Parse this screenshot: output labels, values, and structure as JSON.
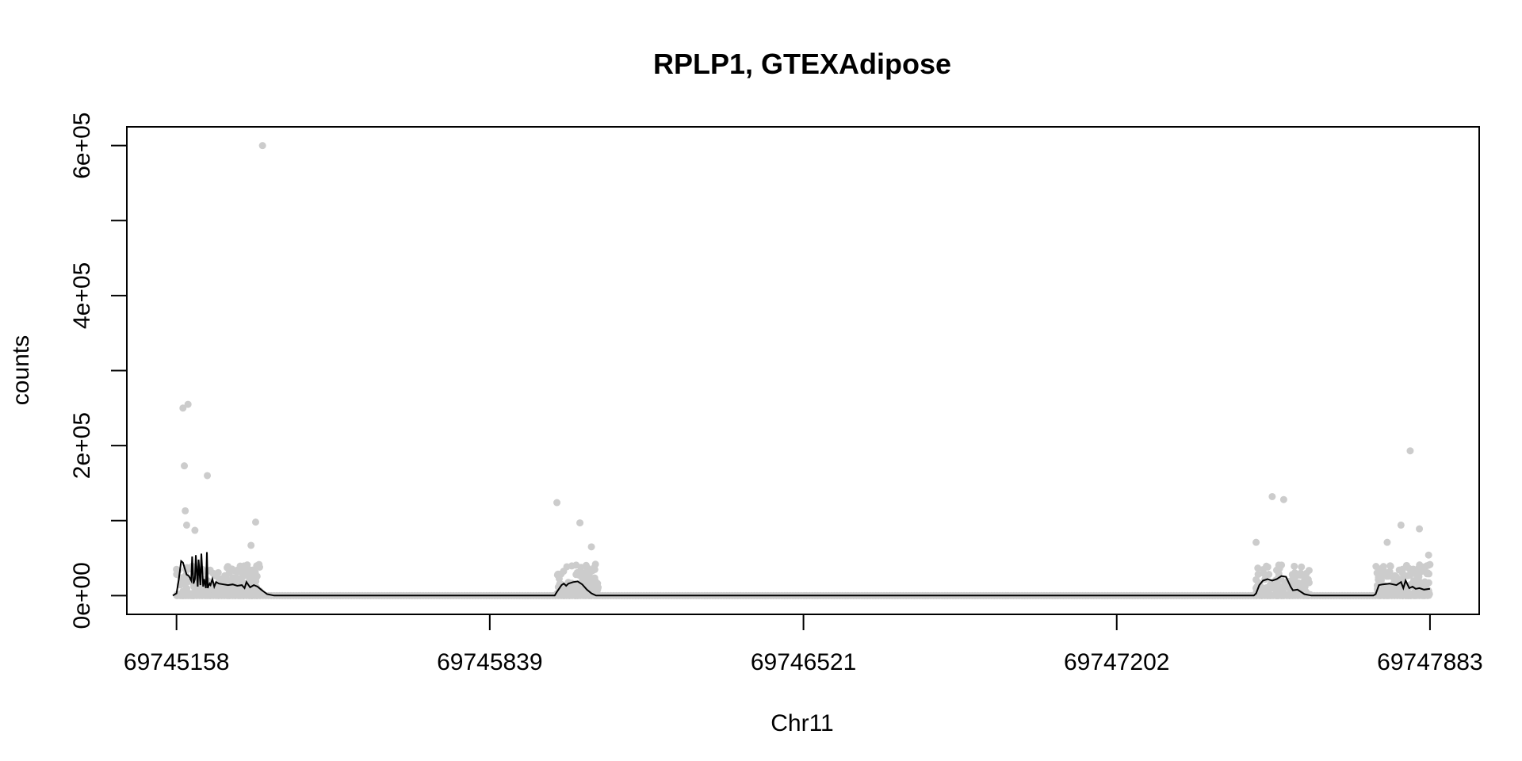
{
  "chart_data": {
    "type": "scatter",
    "title": "RPLP1, GTEXAdipose",
    "xlabel": "Chr11",
    "ylabel": "counts",
    "xlim": [
      69745050,
      69747990
    ],
    "ylim": [
      -25000,
      625000
    ],
    "x_ticks": [
      69745158,
      69745839,
      69746521,
      69747202,
      69747883
    ],
    "x_tick_labels": [
      "69745158",
      "69745839",
      "69746521",
      "69747202",
      "69747883"
    ],
    "y_ticks": [
      0,
      100000,
      200000,
      300000,
      400000,
      500000,
      600000
    ],
    "y_tick_labels": [
      "0e+00",
      "",
      "2e+05",
      "",
      "4e+05",
      "",
      "6e+05"
    ],
    "grid": false,
    "point_color": "#cccccc",
    "line_color": "#000000",
    "regions": [
      {
        "start": 69745158,
        "end": 69745340
      },
      {
        "start": 69745985,
        "end": 69746075
      },
      {
        "start": 69747505,
        "end": 69747625
      },
      {
        "start": 69747765,
        "end": 69747883
      }
    ],
    "outliers": [
      {
        "x": 69745345,
        "y": 600000
      },
      {
        "x": 69745172,
        "y": 250000
      },
      {
        "x": 69745183,
        "y": 255000
      },
      {
        "x": 69745175,
        "y": 173000
      },
      {
        "x": 69745225,
        "y": 160000
      },
      {
        "x": 69745177,
        "y": 113000
      },
      {
        "x": 69745180,
        "y": 94000
      },
      {
        "x": 69745330,
        "y": 98000
      },
      {
        "x": 69745198,
        "y": 87000
      },
      {
        "x": 69745320,
        "y": 67000
      },
      {
        "x": 69745985,
        "y": 124000
      },
      {
        "x": 69746035,
        "y": 97000
      },
      {
        "x": 69746060,
        "y": 65000
      },
      {
        "x": 69747540,
        "y": 132000
      },
      {
        "x": 69747565,
        "y": 128000
      },
      {
        "x": 69747505,
        "y": 71000
      },
      {
        "x": 69747840,
        "y": 193000
      },
      {
        "x": 69747820,
        "y": 94000
      },
      {
        "x": 69747860,
        "y": 89000
      },
      {
        "x": 69747790,
        "y": 71000
      },
      {
        "x": 69747880,
        "y": 54000
      }
    ],
    "series": [
      {
        "x": [
          69745150,
          69745158,
          69745163,
          69745168,
          69745172,
          69745176,
          69745180,
          69745185,
          69745190,
          69745192,
          69745195,
          69745198,
          69745200,
          69745204,
          69745206,
          69745210,
          69745212,
          69745216,
          69745218,
          69745222,
          69745224,
          69745226,
          69745230,
          69745232,
          69745236,
          69745240,
          69745244,
          69745250,
          69745260,
          69745270,
          69745280,
          69745290,
          69745300,
          69745306,
          69745310,
          69745318,
          69745326,
          69745334,
          69745342,
          69745355,
          69745370,
          69745400,
          69745980,
          69745985,
          69745995,
          69746000,
          69746005,
          69746010,
          69746020,
          69746030,
          69746040,
          69746050,
          69746060,
          69746070,
          69746075,
          69746090,
          69746100,
          69747500,
          69747505,
          69747512,
          69747520,
          69747530,
          69747540,
          69747550,
          69747555,
          69747560,
          69747570,
          69747580,
          69747585,
          69747595,
          69747610,
          69747625,
          69747640,
          69747760,
          69747765,
          69747772,
          69747780,
          69747795,
          69747810,
          69747820,
          69747825,
          69747830,
          69747838,
          69747845,
          69747852,
          69747860,
          69747870,
          69747883
        ],
        "y": [
          0,
          3000,
          22000,
          46000,
          44000,
          36000,
          28000,
          26000,
          20000,
          52000,
          16000,
          22000,
          54000,
          12000,
          48000,
          14000,
          56000,
          12000,
          22000,
          10000,
          58000,
          10000,
          16000,
          14000,
          22000,
          12000,
          18000,
          16000,
          15000,
          14000,
          15000,
          13000,
          14000,
          10000,
          18000,
          11000,
          14000,
          12000,
          8000,
          2000,
          0,
          0,
          0,
          5000,
          14000,
          16000,
          13000,
          16000,
          18000,
          19000,
          15000,
          8000,
          3000,
          0,
          0,
          0,
          0,
          0,
          3000,
          14000,
          20000,
          22000,
          20000,
          22000,
          24000,
          26000,
          25000,
          12000,
          7000,
          8000,
          2000,
          0,
          0,
          0,
          2000,
          14000,
          15000,
          16000,
          14000,
          18000,
          10000,
          20000,
          10000,
          12000,
          9000,
          10000,
          8000,
          9000
        ]
      }
    ]
  }
}
